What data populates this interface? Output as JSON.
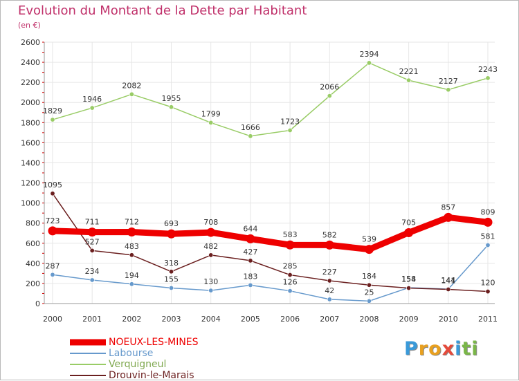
{
  "title": "Evolution du Montant de la Dette par Habitant",
  "subtitle": "(en €)",
  "brand": {
    "letters": [
      "P",
      "r",
      "o",
      "x",
      "i",
      "t",
      "i"
    ],
    "colors": [
      "#3a9ad9",
      "#e8a020",
      "#e8a020",
      "#e54a3b",
      "#3a9ad9",
      "#7ab648",
      "#7ab648"
    ]
  },
  "chart_data": {
    "type": "line",
    "title": "Evolution du Montant de la Dette par Habitant",
    "ylabel": "(en €)",
    "xlabel": "",
    "x": [
      "2000",
      "2001",
      "2002",
      "2003",
      "2004",
      "2005",
      "2006",
      "2007",
      "2008",
      "2009",
      "2010",
      "2011"
    ],
    "ylim": [
      0,
      2600
    ],
    "yticks": [
      "0",
      "200",
      "400",
      "600",
      "800",
      "1000",
      "1200",
      "1400",
      "1600",
      "1800",
      "2000",
      "2200",
      "2400",
      "2600"
    ],
    "grid": true,
    "legend": "bottom-left",
    "series": [
      {
        "name": "NOEUX-LES-MINES",
        "color": "#ee0000",
        "emphasis": true,
        "values": [
          723,
          711,
          712,
          693,
          708,
          644,
          583,
          582,
          539,
          705,
          857,
          809
        ],
        "labels": [
          "723",
          "711",
          "712",
          "693",
          "708",
          "644",
          "583",
          "582",
          "539",
          "705",
          "857",
          "809"
        ]
      },
      {
        "name": "Labourse",
        "color": "#6699cc",
        "emphasis": false,
        "values": [
          287,
          234,
          194,
          155,
          130,
          183,
          126,
          42,
          25,
          158,
          144,
          581
        ],
        "labels": [
          "287",
          "234",
          "194",
          "155",
          "130",
          "183",
          "126",
          "42",
          "25",
          "158",
          "144",
          "581"
        ]
      },
      {
        "name": "Verquigneul",
        "color": "#99cc66",
        "emphasis": false,
        "values": [
          1829,
          1946,
          2082,
          1955,
          1799,
          1666,
          1723,
          2066,
          2394,
          2221,
          2127,
          2243
        ],
        "labels": [
          "1829",
          "1946",
          "2082",
          "1955",
          "1799",
          "1666",
          "1723",
          "2066",
          "2394",
          "2221",
          "2127",
          "2243"
        ]
      },
      {
        "name": "Drouvin-le-Marais",
        "color": "#6b1f1f",
        "emphasis": false,
        "values": [
          1095,
          527,
          483,
          318,
          482,
          427,
          285,
          227,
          184,
          154,
          141,
          120
        ],
        "labels": [
          "1095",
          "527",
          "483",
          "318",
          "482",
          "427",
          "285",
          "227",
          "184",
          "154",
          "141",
          "120"
        ]
      }
    ]
  }
}
